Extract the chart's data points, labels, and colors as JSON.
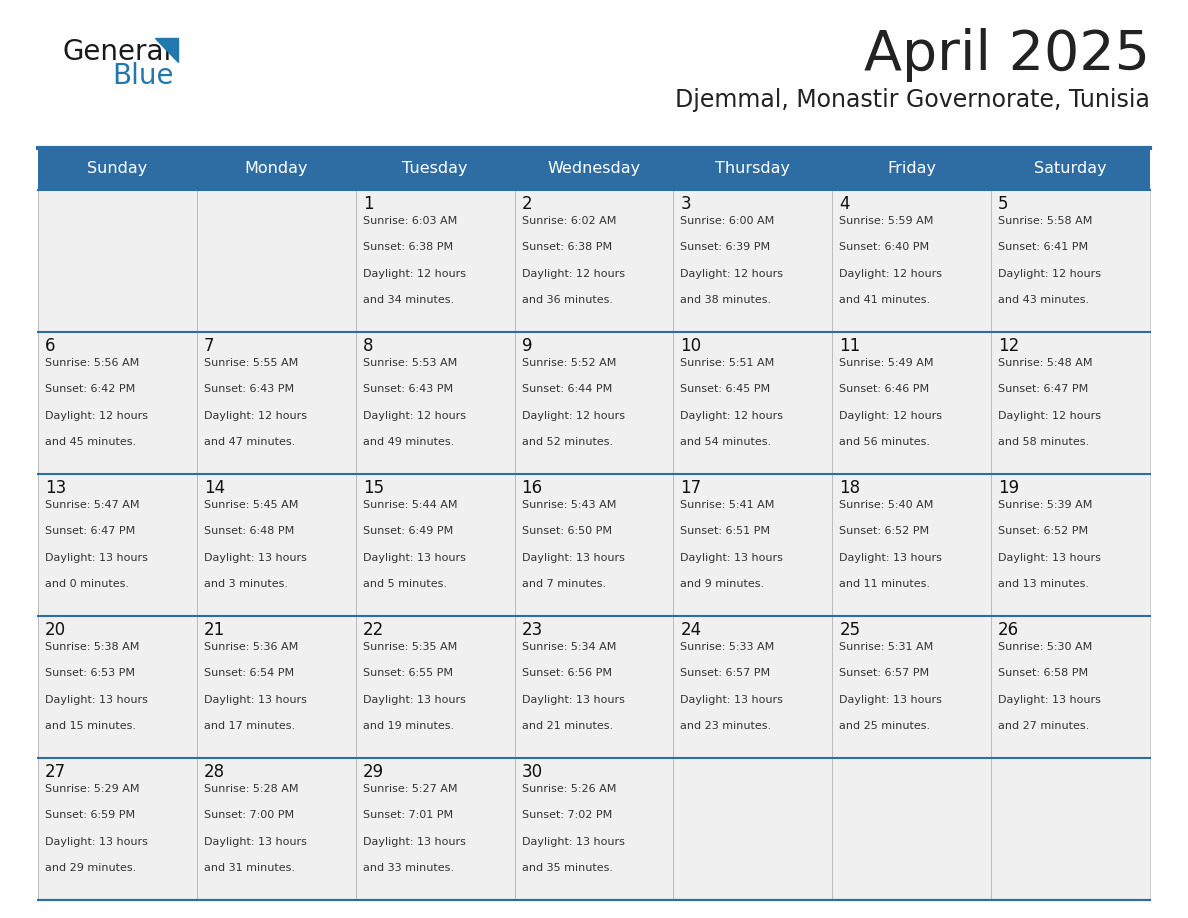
{
  "title": "April 2025",
  "subtitle": "Djemmal, Monastir Governorate, Tunisia",
  "header_bg": "#2E6DA4",
  "header_text_color": "#FFFFFF",
  "cell_bg": "#F0F0F0",
  "day_names": [
    "Sunday",
    "Monday",
    "Tuesday",
    "Wednesday",
    "Thursday",
    "Friday",
    "Saturday"
  ],
  "title_color": "#222222",
  "subtitle_color": "#222222",
  "general_text_color": "#1a1a1a",
  "blue_color": "#2178AE",
  "line_color": "#2E6DA4",
  "cell_text_color": "#333333",
  "day_num_color": "#111111",
  "calendar": [
    [
      {
        "day": "",
        "sunrise": "",
        "sunset": "",
        "daylight": ""
      },
      {
        "day": "",
        "sunrise": "",
        "sunset": "",
        "daylight": ""
      },
      {
        "day": "1",
        "sunrise": "6:03 AM",
        "sunset": "6:38 PM",
        "daylight": "12 hours and 34 minutes."
      },
      {
        "day": "2",
        "sunrise": "6:02 AM",
        "sunset": "6:38 PM",
        "daylight": "12 hours and 36 minutes."
      },
      {
        "day": "3",
        "sunrise": "6:00 AM",
        "sunset": "6:39 PM",
        "daylight": "12 hours and 38 minutes."
      },
      {
        "day": "4",
        "sunrise": "5:59 AM",
        "sunset": "6:40 PM",
        "daylight": "12 hours and 41 minutes."
      },
      {
        "day": "5",
        "sunrise": "5:58 AM",
        "sunset": "6:41 PM",
        "daylight": "12 hours and 43 minutes."
      }
    ],
    [
      {
        "day": "6",
        "sunrise": "5:56 AM",
        "sunset": "6:42 PM",
        "daylight": "12 hours and 45 minutes."
      },
      {
        "day": "7",
        "sunrise": "5:55 AM",
        "sunset": "6:43 PM",
        "daylight": "12 hours and 47 minutes."
      },
      {
        "day": "8",
        "sunrise": "5:53 AM",
        "sunset": "6:43 PM",
        "daylight": "12 hours and 49 minutes."
      },
      {
        "day": "9",
        "sunrise": "5:52 AM",
        "sunset": "6:44 PM",
        "daylight": "12 hours and 52 minutes."
      },
      {
        "day": "10",
        "sunrise": "5:51 AM",
        "sunset": "6:45 PM",
        "daylight": "12 hours and 54 minutes."
      },
      {
        "day": "11",
        "sunrise": "5:49 AM",
        "sunset": "6:46 PM",
        "daylight": "12 hours and 56 minutes."
      },
      {
        "day": "12",
        "sunrise": "5:48 AM",
        "sunset": "6:47 PM",
        "daylight": "12 hours and 58 minutes."
      }
    ],
    [
      {
        "day": "13",
        "sunrise": "5:47 AM",
        "sunset": "6:47 PM",
        "daylight": "13 hours and 0 minutes."
      },
      {
        "day": "14",
        "sunrise": "5:45 AM",
        "sunset": "6:48 PM",
        "daylight": "13 hours and 3 minutes."
      },
      {
        "day": "15",
        "sunrise": "5:44 AM",
        "sunset": "6:49 PM",
        "daylight": "13 hours and 5 minutes."
      },
      {
        "day": "16",
        "sunrise": "5:43 AM",
        "sunset": "6:50 PM",
        "daylight": "13 hours and 7 minutes."
      },
      {
        "day": "17",
        "sunrise": "5:41 AM",
        "sunset": "6:51 PM",
        "daylight": "13 hours and 9 minutes."
      },
      {
        "day": "18",
        "sunrise": "5:40 AM",
        "sunset": "6:52 PM",
        "daylight": "13 hours and 11 minutes."
      },
      {
        "day": "19",
        "sunrise": "5:39 AM",
        "sunset": "6:52 PM",
        "daylight": "13 hours and 13 minutes."
      }
    ],
    [
      {
        "day": "20",
        "sunrise": "5:38 AM",
        "sunset": "6:53 PM",
        "daylight": "13 hours and 15 minutes."
      },
      {
        "day": "21",
        "sunrise": "5:36 AM",
        "sunset": "6:54 PM",
        "daylight": "13 hours and 17 minutes."
      },
      {
        "day": "22",
        "sunrise": "5:35 AM",
        "sunset": "6:55 PM",
        "daylight": "13 hours and 19 minutes."
      },
      {
        "day": "23",
        "sunrise": "5:34 AM",
        "sunset": "6:56 PM",
        "daylight": "13 hours and 21 minutes."
      },
      {
        "day": "24",
        "sunrise": "5:33 AM",
        "sunset": "6:57 PM",
        "daylight": "13 hours and 23 minutes."
      },
      {
        "day": "25",
        "sunrise": "5:31 AM",
        "sunset": "6:57 PM",
        "daylight": "13 hours and 25 minutes."
      },
      {
        "day": "26",
        "sunrise": "5:30 AM",
        "sunset": "6:58 PM",
        "daylight": "13 hours and 27 minutes."
      }
    ],
    [
      {
        "day": "27",
        "sunrise": "5:29 AM",
        "sunset": "6:59 PM",
        "daylight": "13 hours and 29 minutes."
      },
      {
        "day": "28",
        "sunrise": "5:28 AM",
        "sunset": "7:00 PM",
        "daylight": "13 hours and 31 minutes."
      },
      {
        "day": "29",
        "sunrise": "5:27 AM",
        "sunset": "7:01 PM",
        "daylight": "13 hours and 33 minutes."
      },
      {
        "day": "30",
        "sunrise": "5:26 AM",
        "sunset": "7:02 PM",
        "daylight": "13 hours and 35 minutes."
      },
      {
        "day": "",
        "sunrise": "",
        "sunset": "",
        "daylight": ""
      },
      {
        "day": "",
        "sunrise": "",
        "sunset": "",
        "daylight": ""
      },
      {
        "day": "",
        "sunrise": "",
        "sunset": "",
        "daylight": ""
      }
    ]
  ]
}
